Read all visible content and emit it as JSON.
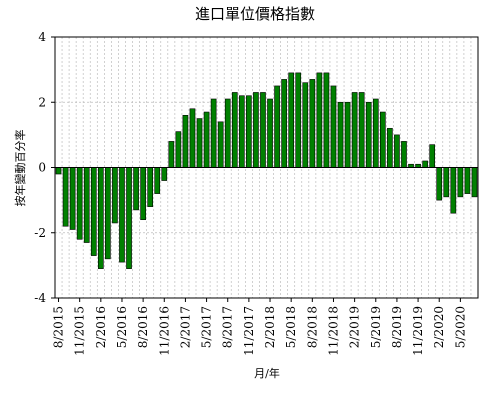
{
  "chart_data": {
    "type": "bar",
    "title": "進口單位價格指數",
    "xlabel": "月/年",
    "ylabel": "按年變動百分率",
    "ylim": [
      -4,
      4
    ],
    "yticks": [
      -4,
      -2,
      0,
      2,
      4
    ],
    "grid": true,
    "bar_color": "#008000",
    "x_tick_labels": [
      "8/2015",
      "11/2015",
      "2/2016",
      "5/2016",
      "8/2016",
      "11/2016",
      "2/2017",
      "5/2017",
      "8/2017",
      "11/2017",
      "2/2018",
      "5/2018",
      "8/2018",
      "11/2018",
      "2/2019",
      "5/2019",
      "8/2019",
      "11/2019",
      "2/2020",
      "5/2020"
    ],
    "categories": [
      "8/2015",
      "9/2015",
      "10/2015",
      "11/2015",
      "12/2015",
      "1/2016",
      "2/2016",
      "3/2016",
      "4/2016",
      "5/2016",
      "6/2016",
      "7/2016",
      "8/2016",
      "9/2016",
      "10/2016",
      "11/2016",
      "12/2016",
      "1/2017",
      "2/2017",
      "3/2017",
      "4/2017",
      "5/2017",
      "6/2017",
      "7/2017",
      "8/2017",
      "9/2017",
      "10/2017",
      "11/2017",
      "12/2017",
      "1/2018",
      "2/2018",
      "3/2018",
      "4/2018",
      "5/2018",
      "6/2018",
      "7/2018",
      "8/2018",
      "9/2018",
      "10/2018",
      "11/2018",
      "12/2018",
      "1/2019",
      "2/2019",
      "3/2019",
      "4/2019",
      "5/2019",
      "6/2019",
      "7/2019",
      "8/2019",
      "9/2019",
      "10/2019",
      "11/2019",
      "12/2019",
      "1/2020",
      "2/2020",
      "3/2020",
      "4/2020",
      "5/2020",
      "6/2020",
      "7/2020"
    ],
    "values": [
      -0.2,
      -1.8,
      -1.9,
      -2.2,
      -2.3,
      -2.7,
      -3.1,
      -2.8,
      -1.7,
      -2.9,
      -3.1,
      -1.3,
      -1.6,
      -1.2,
      -0.8,
      -0.4,
      0.8,
      1.1,
      1.6,
      1.8,
      1.5,
      1.7,
      2.1,
      1.4,
      2.1,
      2.3,
      2.2,
      2.2,
      2.3,
      2.3,
      2.1,
      2.5,
      2.7,
      2.9,
      2.9,
      2.6,
      2.7,
      2.9,
      2.9,
      2.5,
      2.0,
      2.0,
      2.3,
      2.3,
      2.0,
      2.1,
      1.7,
      1.2,
      1.0,
      0.8,
      0.1,
      0.1,
      0.2,
      0.7,
      -1.0,
      -0.9,
      -1.4,
      -0.9,
      -0.8,
      -0.9
    ]
  }
}
